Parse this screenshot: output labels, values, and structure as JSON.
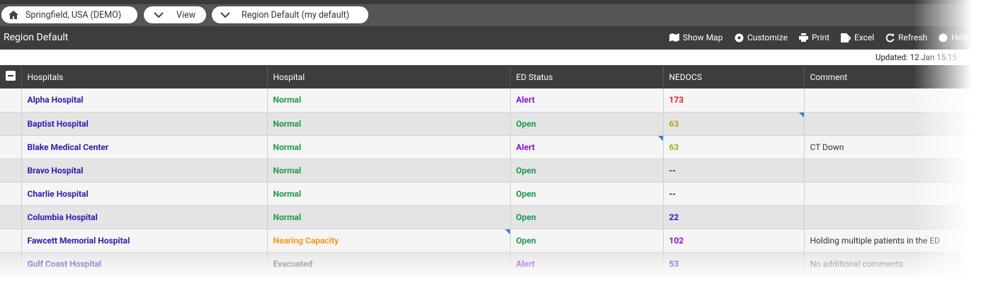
{
  "breadcrumbs": [
    "Springfield, USA (DEMO)",
    "View",
    "Region Default (my default)"
  ],
  "header": {
    "title": "Region Default",
    "actions": [
      "Show Map",
      "Customize",
      "Print",
      "Excel",
      "Refresh",
      "Help"
    ]
  },
  "updated": "Updated: 12 Jan 15:15",
  "table": {
    "columns": [
      "Hospitals",
      "Hospital",
      "ED Status",
      "NEDOCS",
      "Comment"
    ],
    "rows": [
      [
        {
          "text": "Alpha Hospital",
          "color": "#2a1fb0"
        },
        {
          "text": "Normal",
          "color": "#1f9a4c"
        },
        {
          "text": "Alert",
          "color": "#8a14d6"
        },
        {
          "text": "173",
          "color": "#e02020"
        },
        {
          "text": "",
          "color": "#333333"
        }
      ],
      [
        {
          "text": "Baptist Hospital",
          "color": "#2a1fb0"
        },
        {
          "text": "Normal",
          "color": "#1f9a4c"
        },
        {
          "text": "Open",
          "color": "#1f9a4c"
        },
        {
          "text": "63",
          "color": "#b5a21c"
        },
        {
          "text": "",
          "color": "#333333"
        }
      ],
      [
        {
          "text": "Blake Medical Center",
          "color": "#2a1fb0"
        },
        {
          "text": "Normal",
          "color": "#1f9a4c"
        },
        {
          "text": "Alert",
          "color": "#8a14d6"
        },
        {
          "text": "63",
          "color": "#b5a21c"
        },
        {
          "text": "CT Down",
          "color": "#333333"
        }
      ],
      [
        {
          "text": "Bravo Hospital",
          "color": "#2a1fb0"
        },
        {
          "text": "Normal",
          "color": "#1f9a4c"
        },
        {
          "text": "Open",
          "color": "#1f9a4c"
        },
        {
          "text": "--",
          "color": "#222222"
        },
        {
          "text": "",
          "color": "#333333"
        }
      ],
      [
        {
          "text": "Charlie Hospital",
          "color": "#2a1fb0"
        },
        {
          "text": "Normal",
          "color": "#1f9a4c"
        },
        {
          "text": "Open",
          "color": "#1f9a4c"
        },
        {
          "text": "--",
          "color": "#222222"
        },
        {
          "text": "",
          "color": "#333333"
        }
      ],
      [
        {
          "text": "Columbia Hospital",
          "color": "#2a1fb0"
        },
        {
          "text": "Normal",
          "color": "#1f9a4c"
        },
        {
          "text": "Open",
          "color": "#1f9a4c"
        },
        {
          "text": "22",
          "color": "#1a22d8"
        },
        {
          "text": "",
          "color": "#333333"
        }
      ],
      [
        {
          "text": "Fawcett Memorial Hospital",
          "color": "#2a1fb0"
        },
        {
          "text": "Nearing Capacity",
          "color": "#f29a1c"
        },
        {
          "text": "Open",
          "color": "#1f9a4c"
        },
        {
          "text": "102",
          "color": "#8a14d6"
        },
        {
          "text": "Holding multiple patients in the ED",
          "color": "#333333"
        }
      ],
      [
        {
          "text": "Gulf Coast Hospital",
          "color": "#2a1fb0"
        },
        {
          "text": "Evacuated",
          "color": "#555555"
        },
        {
          "text": "Alert",
          "color": "#8a14d6"
        },
        {
          "text": "53",
          "color": "#1a22d8"
        },
        {
          "text": "No additional comments",
          "color": "#555555"
        }
      ]
    ]
  }
}
